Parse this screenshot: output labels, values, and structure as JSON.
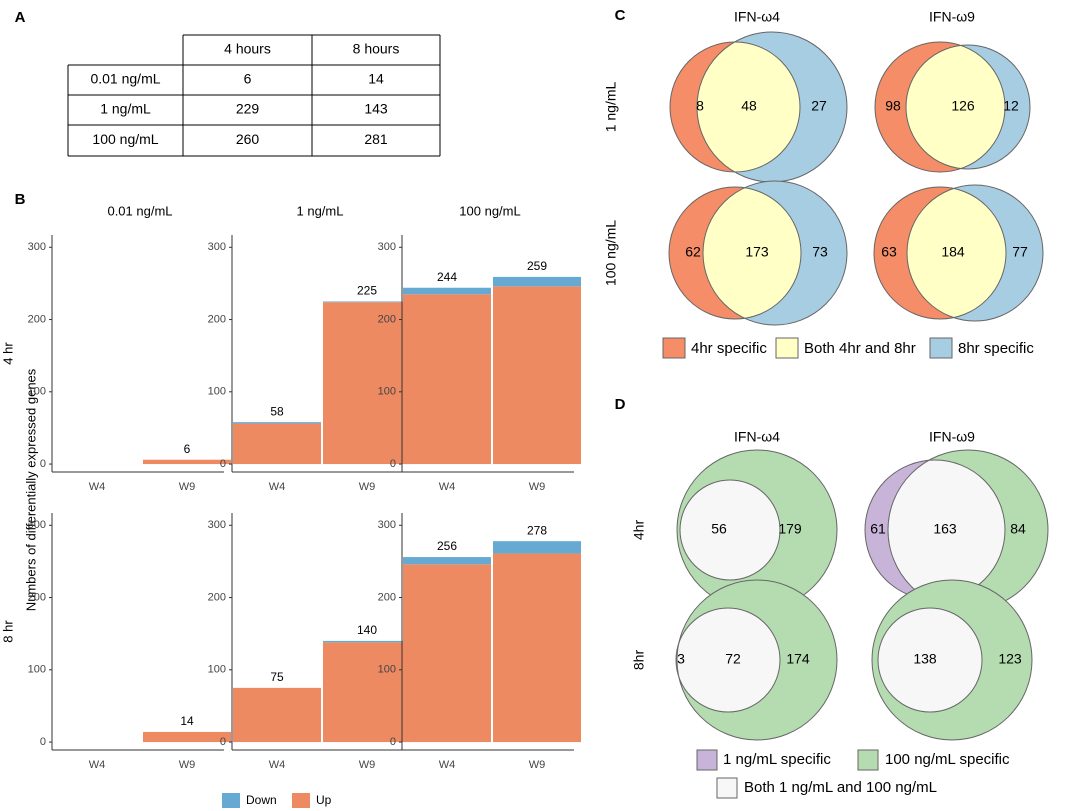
{
  "panel_a": {
    "label": "A",
    "columns": [
      "4 hours",
      "8 hours"
    ],
    "rows": [
      {
        "label": "0.01 ng/mL",
        "values": [
          6,
          14
        ]
      },
      {
        "label": "1 ng/mL",
        "values": [
          229,
          143
        ]
      },
      {
        "label": "100 ng/mL",
        "values": [
          260,
          281
        ]
      }
    ]
  },
  "panel_b": {
    "label": "B",
    "y_label": "Numbers of differentially expressed genes",
    "facet_columns": [
      "0.01 ng/mL",
      "1 ng/mL",
      "100 ng/mL"
    ],
    "facet_rows": [
      "4 hr",
      "8 hr"
    ]
  },
  "chart_data": {
    "type": "bar",
    "categories": [
      "W4",
      "W9"
    ],
    "ylim": [
      -11,
      317
    ],
    "yticks": [
      0,
      100,
      200,
      300
    ],
    "series": [
      {
        "name": "Down",
        "color": "#66a9d3",
        "values": [
          [
            0,
            0
          ],
          [
            2,
            1
          ],
          [
            9,
            13
          ],
          [
            0,
            0
          ],
          [
            0,
            2
          ],
          [
            10,
            17
          ]
        ]
      },
      {
        "name": "Up",
        "color": "#ee8a62",
        "values": [
          [
            0,
            6
          ],
          [
            56,
            224
          ],
          [
            235,
            246
          ],
          [
            0,
            14
          ],
          [
            75,
            138
          ],
          [
            246,
            261
          ]
        ]
      }
    ],
    "totals": [
      [
        null,
        6
      ],
      [
        58,
        225
      ],
      [
        244,
        259
      ],
      [
        null,
        14
      ],
      [
        75,
        140
      ],
      [
        256,
        278
      ]
    ]
  },
  "panel_c": {
    "label": "C",
    "columns": [
      "IFN-ω4",
      "IFN-ω9"
    ],
    "rows": [
      "1 ng/mL",
      "100 ng/mL"
    ],
    "legend": [
      {
        "name": "4hr specific",
        "color": "#f58d68"
      },
      {
        "name": "Both 4hr and 8hr",
        "color": "#ffffc6"
      },
      {
        "name": "8hr specific",
        "color": "#a7cde3"
      }
    ],
    "venns": [
      [
        8,
        48,
        27
      ],
      [
        98,
        126,
        12
      ],
      [
        62,
        173,
        73
      ],
      [
        63,
        184,
        77
      ]
    ]
  },
  "panel_d": {
    "label": "D",
    "columns": [
      "IFN-ω4",
      "IFN-ω9"
    ],
    "rows": [
      "4hr",
      "8hr"
    ],
    "legend": [
      {
        "name": "1 ng/mL specific",
        "color": "#c8b4d8"
      },
      {
        "name": "100 ng/mL specific",
        "color": "#b5dcb1"
      },
      {
        "name": "Both 1 ng/mL and 100 ng/mL",
        "color": "#f7f7f7"
      }
    ],
    "venns": [
      [
        null,
        56,
        179
      ],
      [
        61,
        163,
        84
      ],
      [
        3,
        72,
        174
      ],
      [
        null,
        138,
        123
      ]
    ]
  }
}
